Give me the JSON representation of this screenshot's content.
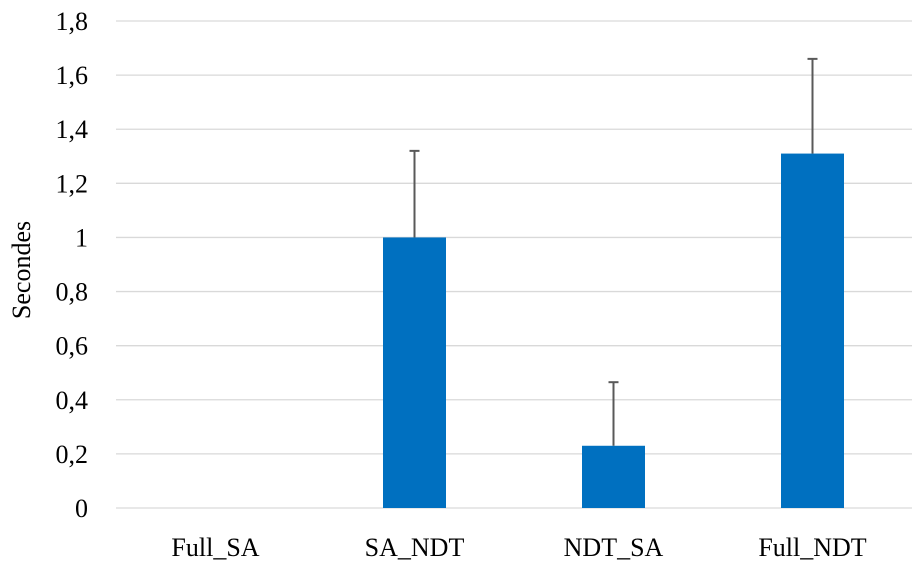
{
  "chart_data": {
    "type": "bar",
    "title": "",
    "xlabel": "",
    "ylabel": "Secondes",
    "categories": [
      "Full_SA",
      "SA_NDT",
      "NDT_SA",
      "Full_NDT"
    ],
    "values": [
      0,
      1.0,
      0.23,
      1.31
    ],
    "error_plus": [
      0,
      0.32,
      0.235,
      0.35
    ],
    "ylim": [
      0,
      1.8
    ],
    "yticks": [
      0,
      0.2,
      0.4,
      0.6,
      0.8,
      1.0,
      1.2,
      1.4,
      1.6,
      1.8
    ],
    "ytick_labels": [
      "0",
      "0,2",
      "0,4",
      "0,6",
      "0,8",
      "1",
      "1,2",
      "1,4",
      "1,6",
      "1,8"
    ],
    "grid": true,
    "legend": "none",
    "colors": {
      "bar": "#0070C0",
      "gridline": "#D9D9D9",
      "error_bar": "#595959"
    }
  }
}
